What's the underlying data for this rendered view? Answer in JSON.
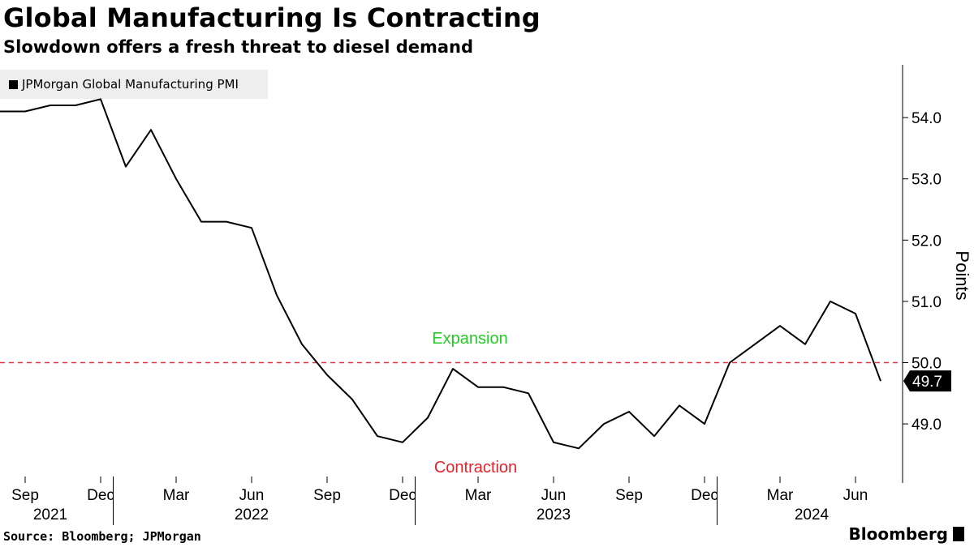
{
  "title": "Global Manufacturing Is Contracting",
  "subtitle": "Slowdown offers a fresh threat to diesel demand",
  "source": "Source: Bloomberg; JPMorgan",
  "brand": "Bloomberg",
  "colors": {
    "line": "#000000",
    "threshold": "#e8323c",
    "expansion": "#22cc22",
    "contraction": "#e8202a",
    "legend_bg": "#eeeeee"
  },
  "chart_data": {
    "type": "line",
    "title": "Global Manufacturing Is Contracting",
    "ylabel": "Points",
    "ylim": [
      48.3,
      54.8
    ],
    "yticks": [
      "49.0",
      "50.0",
      "51.0",
      "52.0",
      "53.0",
      "54.0"
    ],
    "x_axis": {
      "months": [
        "Sep",
        "Dec",
        "Mar",
        "Jun",
        "Sep",
        "Dec",
        "Mar",
        "Jun",
        "Sep",
        "Dec",
        "Mar",
        "Jun"
      ],
      "years": [
        "2021",
        "2022",
        "2023",
        "2024"
      ]
    },
    "series": [
      {
        "name": "JPMorgan Global Manufacturing PMI",
        "x": [
          "2021-08",
          "2021-09",
          "2021-10",
          "2021-11",
          "2021-12",
          "2022-01",
          "2022-02",
          "2022-03",
          "2022-04",
          "2022-05",
          "2022-06",
          "2022-07",
          "2022-08",
          "2022-09",
          "2022-10",
          "2022-11",
          "2022-12",
          "2023-01",
          "2023-02",
          "2023-03",
          "2023-04",
          "2023-05",
          "2023-06",
          "2023-07",
          "2023-08",
          "2023-09",
          "2023-10",
          "2023-11",
          "2023-12",
          "2024-01",
          "2024-02",
          "2024-03",
          "2024-04",
          "2024-05",
          "2024-06",
          "2024-07"
        ],
        "values": [
          54.1,
          54.1,
          54.2,
          54.2,
          54.3,
          53.2,
          53.8,
          53.0,
          52.3,
          52.3,
          52.2,
          51.1,
          50.3,
          49.8,
          49.4,
          48.8,
          48.7,
          49.1,
          49.9,
          49.6,
          49.6,
          49.5,
          48.7,
          48.6,
          49.0,
          49.2,
          48.8,
          49.3,
          49.0,
          50.0,
          50.3,
          50.6,
          50.3,
          51.0,
          50.8,
          49.7
        ]
      }
    ],
    "last_value_label": "49.7",
    "reference_line": {
      "value": 50.0
    },
    "annotations": [
      {
        "text": "Expansion"
      },
      {
        "text": "Contraction"
      }
    ]
  }
}
